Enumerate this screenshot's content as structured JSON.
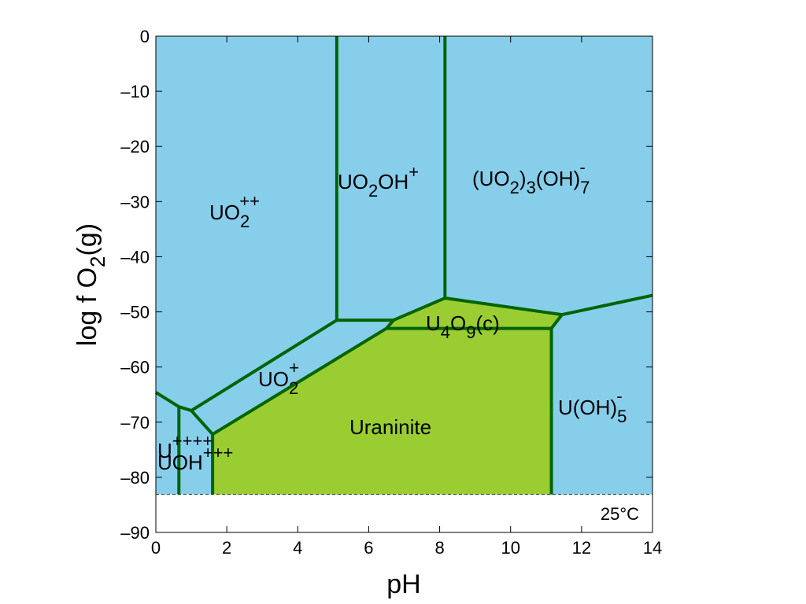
{
  "colors": {
    "aqueous": "#87ceeb",
    "mineral": "#9acd32",
    "boundary": "#006400",
    "background": "#ffffff"
  },
  "axes": {
    "xlabel": "pH",
    "ylabel": "log f O",
    "ylabel_sub": "2",
    "ylabel_tail": "(g)",
    "xlim": [
      0,
      14
    ],
    "ylim": [
      -90,
      0
    ],
    "xticks": [
      "0",
      "2",
      "4",
      "6",
      "8",
      "10",
      "12",
      "14"
    ],
    "yticks": [
      "0",
      "–10",
      "–20",
      "–30",
      "–40",
      "–50",
      "–60",
      "–70",
      "–80",
      "–90"
    ]
  },
  "temperature": "25°C",
  "water_stability_limit_logfO2": -83.1,
  "fields": {
    "uo2pp": {
      "base": "UO",
      "sub": "2",
      "sup": "++"
    },
    "uo2ohp": {
      "base": "UO",
      "sub": "2",
      "rest": "OH",
      "sup": "+"
    },
    "uo23oh7": {
      "p1": "(UO",
      "s1": "2",
      "p2": ")",
      "s2": "3",
      "p3": "(OH)",
      "s3": "7",
      "sup": "-"
    },
    "u4o9": {
      "p1": "U",
      "s1": "4",
      "p2": "O",
      "s2": "9",
      "p3": "(c)"
    },
    "uo2p": {
      "base": "UO",
      "sub": "2",
      "sup": "+"
    },
    "uraninite": "Uraninite",
    "uoh5": {
      "base": "U(OH)",
      "sub": "5",
      "sup": "-"
    },
    "u4p": {
      "base": "U",
      "sup": "++++"
    },
    "uoh3p": {
      "base": "UOH",
      "sup": "+++"
    }
  },
  "chart_data": {
    "type": "predominance-diagram",
    "x_variable": "pH",
    "y_variable": "log f O2(g)",
    "xlim": [
      0,
      14
    ],
    "ylim": [
      -90,
      0
    ],
    "temperature": "25°C",
    "lower_water_stability_limit": -83.1,
    "mineral_fields": [
      {
        "name": "Uraninite",
        "polygon": [
          [
            1.6,
            -83.1
          ],
          [
            1.6,
            -72.2
          ],
          [
            6.5,
            -53.0
          ],
          [
            11.15,
            -53.0
          ],
          [
            11.15,
            -83.1
          ]
        ]
      },
      {
        "name": "U4O9(c)",
        "polygon": [
          [
            6.5,
            -53.0
          ],
          [
            6.7,
            -51.5
          ],
          [
            8.15,
            -47.5
          ],
          [
            11.45,
            -50.5
          ],
          [
            11.15,
            -53.0
          ]
        ]
      }
    ],
    "boundaries": [
      [
        [
          0,
          -64.6
        ],
        [
          0.65,
          -67.2
        ],
        [
          1.0,
          -67.9
        ],
        [
          1.6,
          -72.2
        ]
      ],
      [
        [
          0.65,
          -67.2
        ],
        [
          0.65,
          -83.1
        ]
      ],
      [
        [
          1.6,
          -72.2
        ],
        [
          1.6,
          -83.1
        ]
      ],
      [
        [
          1.0,
          -67.9
        ],
        [
          5.1,
          -51.5
        ]
      ],
      [
        [
          5.1,
          -51.5
        ],
        [
          5.1,
          0
        ]
      ],
      [
        [
          5.1,
          -51.5
        ],
        [
          6.7,
          -51.5
        ]
      ],
      [
        [
          1.6,
          -72.2
        ],
        [
          6.5,
          -53.0
        ]
      ],
      [
        [
          6.5,
          -53.0
        ],
        [
          11.15,
          -53.0
        ]
      ],
      [
        [
          6.5,
          -53.0
        ],
        [
          6.7,
          -51.5
        ],
        [
          8.15,
          -47.5
        ],
        [
          11.45,
          -50.5
        ],
        [
          14.0,
          -47.0
        ]
      ],
      [
        [
          8.15,
          -47.5
        ],
        [
          8.15,
          0
        ]
      ],
      [
        [
          11.45,
          -50.5
        ],
        [
          11.15,
          -53.0
        ],
        [
          11.15,
          -83.1
        ]
      ]
    ]
  }
}
